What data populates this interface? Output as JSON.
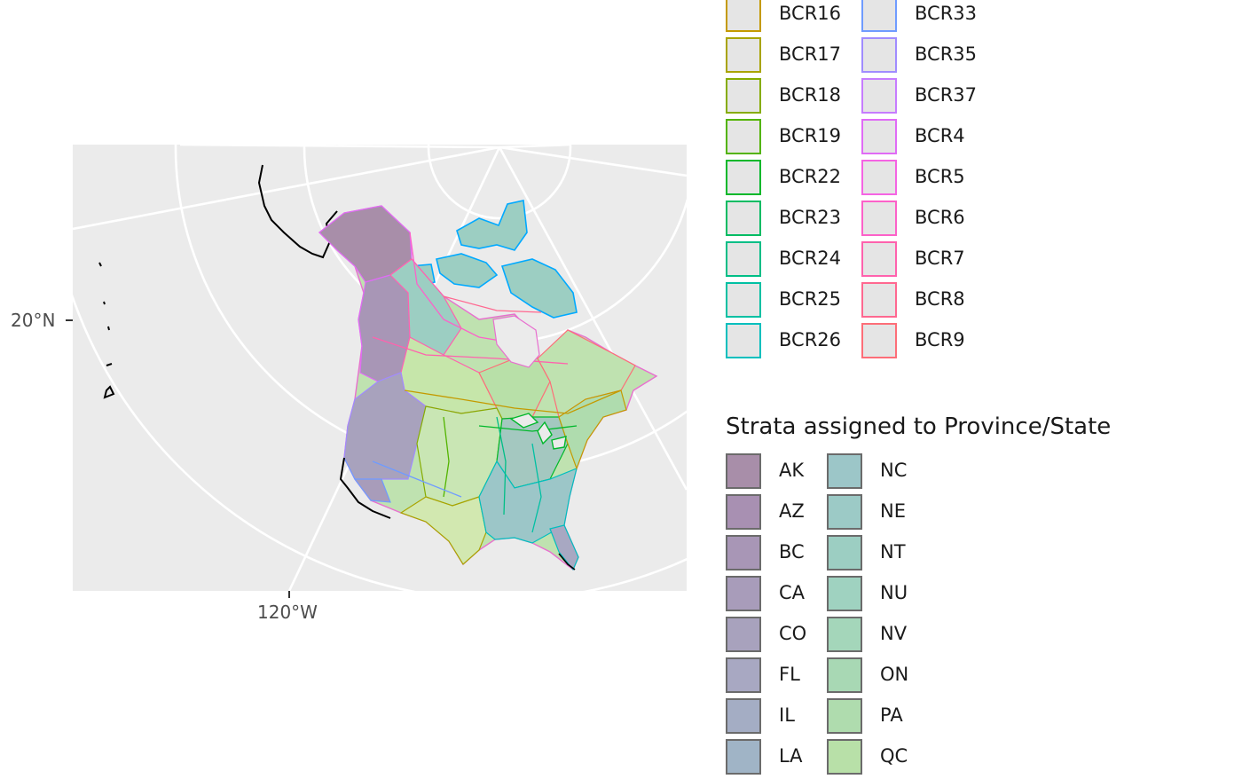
{
  "map": {
    "y_axis_label": "20°N",
    "x_axis_label": "120°W",
    "colors": {
      "panel_background": "#ebebeb",
      "graticule": "#ffffff",
      "land_base": "#c9e6b4"
    }
  },
  "legend_bcr": {
    "col1": [
      {
        "label": "BCR16",
        "color": "#c49a00"
      },
      {
        "label": "BCR17",
        "color": "#a9a400"
      },
      {
        "label": "BCR18",
        "color": "#86ac00"
      },
      {
        "label": "BCR19",
        "color": "#53b400"
      },
      {
        "label": "BCR22",
        "color": "#00b82b"
      },
      {
        "label": "BCR23",
        "color": "#00bc63"
      },
      {
        "label": "BCR24",
        "color": "#00be86"
      },
      {
        "label": "BCR25",
        "color": "#00c0a3"
      },
      {
        "label": "BCR26",
        "color": "#00bfbe"
      }
    ],
    "col2": [
      {
        "label": "BCR33",
        "color": "#6f9bff"
      },
      {
        "label": "BCR35",
        "color": "#a08cff"
      },
      {
        "label": "BCR37",
        "color": "#c67cff"
      },
      {
        "label": "BCR4",
        "color": "#e06bf6"
      },
      {
        "label": "BCR5",
        "color": "#f564e3"
      },
      {
        "label": "BCR6",
        "color": "#fc61c9"
      },
      {
        "label": "BCR7",
        "color": "#ff62ad"
      },
      {
        "label": "BCR8",
        "color": "#ff6890"
      },
      {
        "label": "BCR9",
        "color": "#fd6e78"
      }
    ]
  },
  "legend_strata": {
    "title": "Strata assigned to Province/State",
    "col1": [
      {
        "label": "AK",
        "color": "#a88ea9"
      },
      {
        "label": "AZ",
        "color": "#a890b2"
      },
      {
        "label": "BC",
        "color": "#a896b6"
      },
      {
        "label": "CA",
        "color": "#a89cba"
      },
      {
        "label": "CO",
        "color": "#a8a2bd"
      },
      {
        "label": "FL",
        "color": "#a8a8c2"
      },
      {
        "label": "IL",
        "color": "#a4adc4"
      },
      {
        "label": "LA",
        "color": "#a0b4c6"
      }
    ],
    "col2": [
      {
        "label": "NC",
        "color": "#9cc6c8"
      },
      {
        "label": "NE",
        "color": "#9ccac6"
      },
      {
        "label": "NT",
        "color": "#9ccec2"
      },
      {
        "label": "NU",
        "color": "#9fd2c0"
      },
      {
        "label": "NV",
        "color": "#a4d6ba"
      },
      {
        "label": "ON",
        "color": "#a8d8b4"
      },
      {
        "label": "PA",
        "color": "#afdcae"
      },
      {
        "label": "QC",
        "color": "#b8e0a8"
      }
    ]
  }
}
